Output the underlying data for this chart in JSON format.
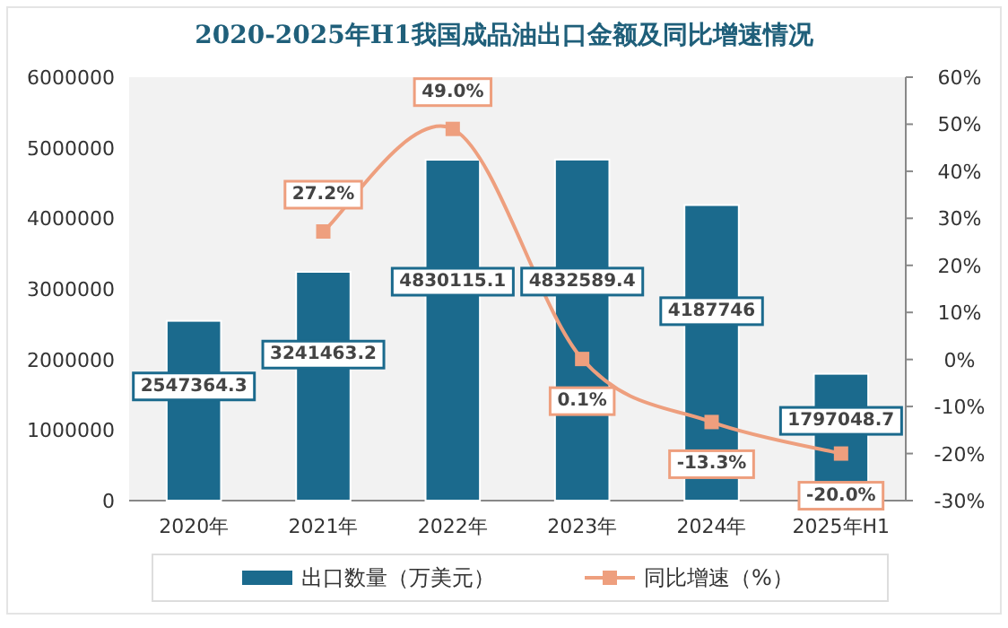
{
  "chart_data": {
    "type": "bar",
    "title": "2020-2025年H1我国成品油出口金额及同比增速情况",
    "categories": [
      "2020年",
      "2021年",
      "2022年",
      "2023年",
      "2024年",
      "2025年H1"
    ],
    "series": [
      {
        "name": "出口数量（万美元）",
        "color": "#1b6a8d",
        "values": [
          2547364.3,
          3241463.2,
          4830115.1,
          4832589.4,
          4187746,
          1797048.7
        ],
        "value_labels": [
          "2547364.3",
          "3241463.2",
          "4830115.1",
          "4832589.4",
          "4187746",
          "1797048.7"
        ]
      },
      {
        "name": "同比增速（%）",
        "type": "line",
        "axis": "y2",
        "color": "#ee9f7e",
        "marker": "square",
        "values": [
          null,
          27.2,
          49.0,
          0.1,
          -13.3,
          -20.0
        ],
        "value_labels": [
          null,
          "27.2%",
          "49.0%",
          "0.1%",
          "-13.3%",
          "-20.0%"
        ]
      }
    ],
    "ylim": [
      0,
      6000000
    ],
    "yticks": [
      0,
      1000000,
      2000000,
      3000000,
      4000000,
      5000000,
      6000000
    ],
    "y2lim": [
      -30,
      60
    ],
    "y2ticks": [
      {
        "value": -30,
        "label": "-30%"
      },
      {
        "value": -20,
        "label": "-20%"
      },
      {
        "value": -10,
        "label": "-10%"
      },
      {
        "value": 0,
        "label": "0%"
      },
      {
        "value": 10,
        "label": "10%"
      },
      {
        "value": 20,
        "label": "20%"
      },
      {
        "value": 30,
        "label": "30%"
      },
      {
        "value": 40,
        "label": "40%"
      },
      {
        "value": 50,
        "label": "50%"
      },
      {
        "value": 60,
        "label": "60%"
      }
    ],
    "legend": "bottom",
    "grid": false
  }
}
